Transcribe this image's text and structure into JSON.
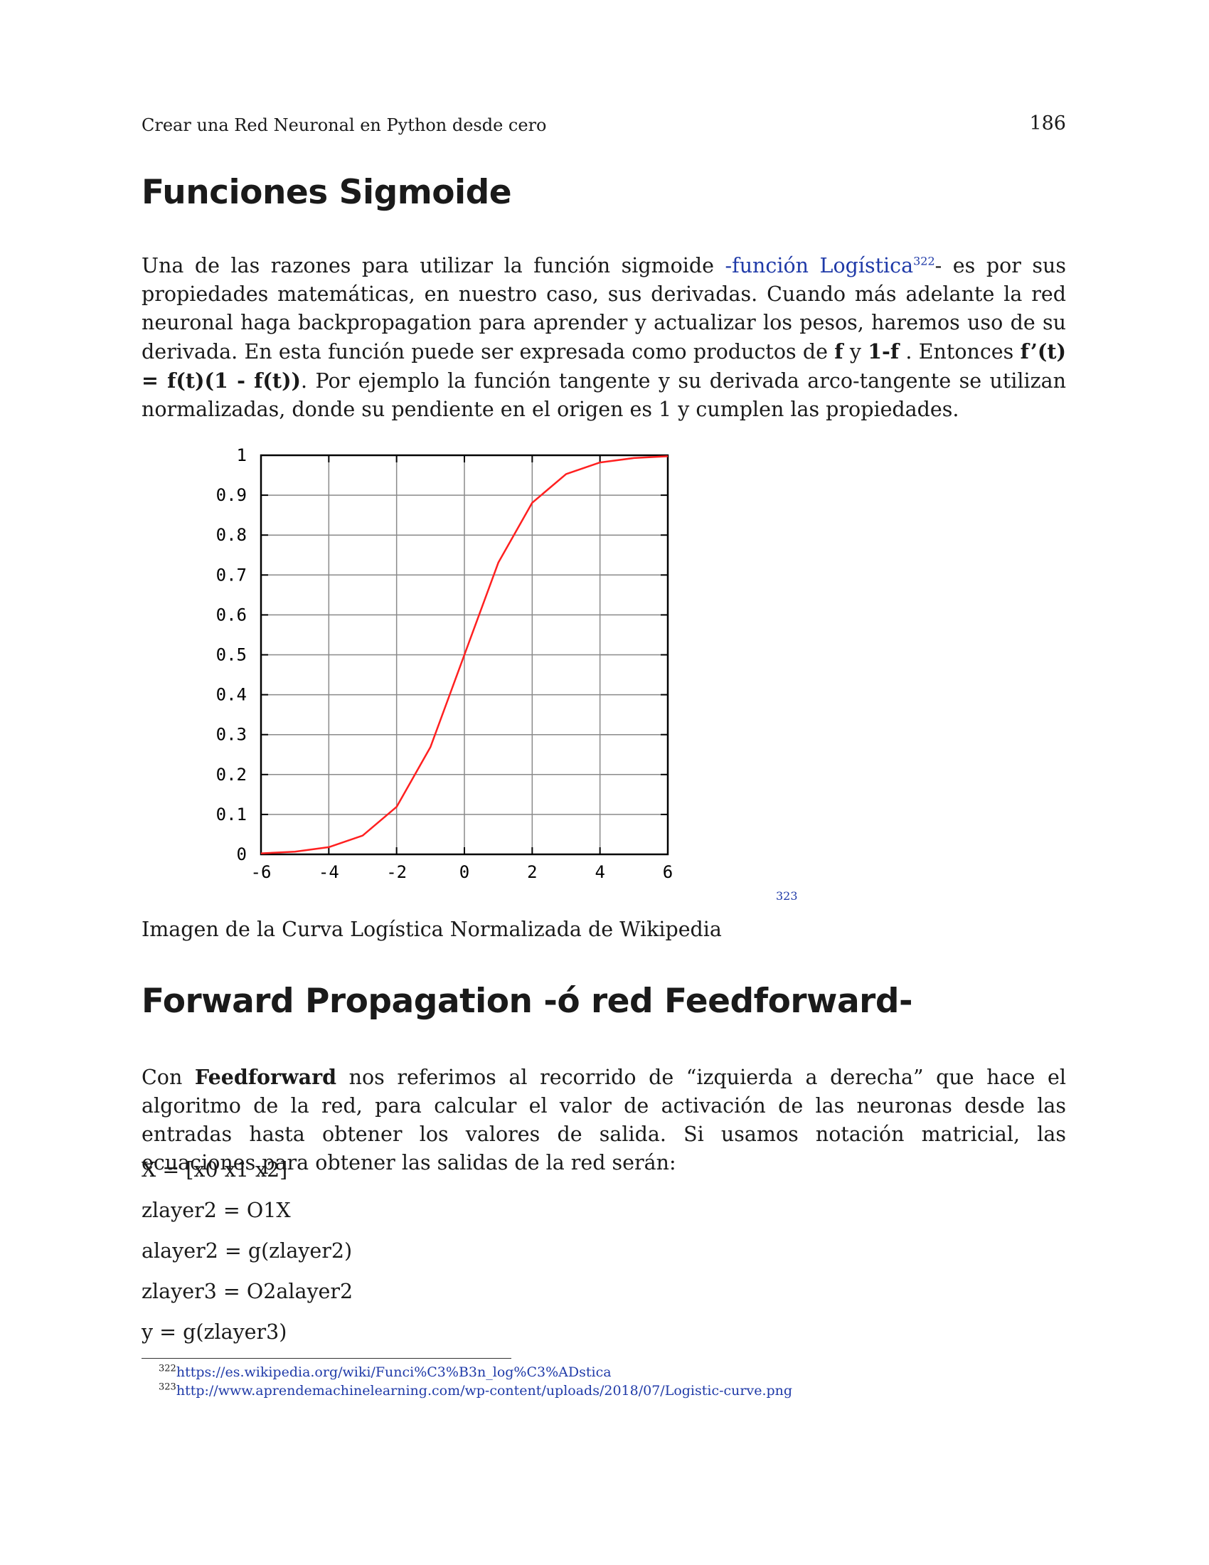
{
  "header": {
    "running_title": "Crear una Red Neuronal en Python desde cero",
    "page_number": "186"
  },
  "section1": {
    "heading": "Funciones Sigmoide",
    "para": {
      "t1": "Una de las razones para utilizar la función sigmoide ",
      "link": "-función Logística",
      "ref": "322",
      "t2": "- es por sus propiedades matemáticas, en nuestro caso, sus derivadas. Cuando más adelante la red neuronal haga backpropagation para aprender y actualizar los pesos, haremos uso de su derivada. En esta función puede ser expresada como productos de ",
      "b1": "f",
      "t3": " y ",
      "b2": "1-f",
      "t4": " . Entonces ",
      "b3": "f’(t) = f(t)(1 - f(t))",
      "t5": ". Por ejemplo la función tangente y su derivada arco-tangente se utilizan normalizadas, donde su pendiente en el origen es 1 y cumplen las propiedades."
    },
    "figure_ref": "323",
    "caption": "Imagen de la Curva Logística Normalizada de Wikipedia"
  },
  "chart_data": {
    "type": "line",
    "x": [
      -6,
      -5,
      -4,
      -3,
      -2,
      -1,
      0,
      1,
      2,
      3,
      4,
      5,
      6
    ],
    "series": [
      {
        "values": [
          0.0025,
          0.0067,
          0.018,
          0.047,
          0.119,
          0.269,
          0.5,
          0.731,
          0.881,
          0.953,
          0.982,
          0.993,
          0.9975
        ]
      }
    ],
    "xlim": [
      -6,
      6
    ],
    "ylim": [
      0,
      1
    ],
    "xticks": [
      "-6",
      "-4",
      "-2",
      "0",
      "2",
      "4",
      "6"
    ],
    "yticks": [
      "0",
      "0.1",
      "0.2",
      "0.3",
      "0.4",
      "0.5",
      "0.6",
      "0.7",
      "0.8",
      "0.9",
      "1"
    ],
    "grid": true,
    "line_color": "#ff2020"
  },
  "section2": {
    "heading": "Forward Propagation -ó red Feedforward-",
    "para": {
      "t1": "Con ",
      "b1": "Feedforward",
      "t2": " nos referimos al recorrido de “izquierda a derecha” que hace el algoritmo de la red, para calcular el valor de activación de las neuronas desde las entradas hasta obtener los valores de salida. Si usamos notación matricial, las ecuaciones para obtener las salidas de la red serán:"
    },
    "equations": [
      "X = [x0 x1 x2]",
      "zlayer2 = O1X",
      "alayer2 = g(zlayer2)",
      "zlayer3 = O2alayer2",
      "y = g(zlayer3)"
    ]
  },
  "footnotes": [
    {
      "num": "322",
      "url": "https://es.wikipedia.org/wiki/Funci%C3%B3n_log%C3%ADstica"
    },
    {
      "num": "323",
      "url": "http://www.aprendemachinelearning.com/wp-content/uploads/2018/07/Logistic-curve.png"
    }
  ]
}
